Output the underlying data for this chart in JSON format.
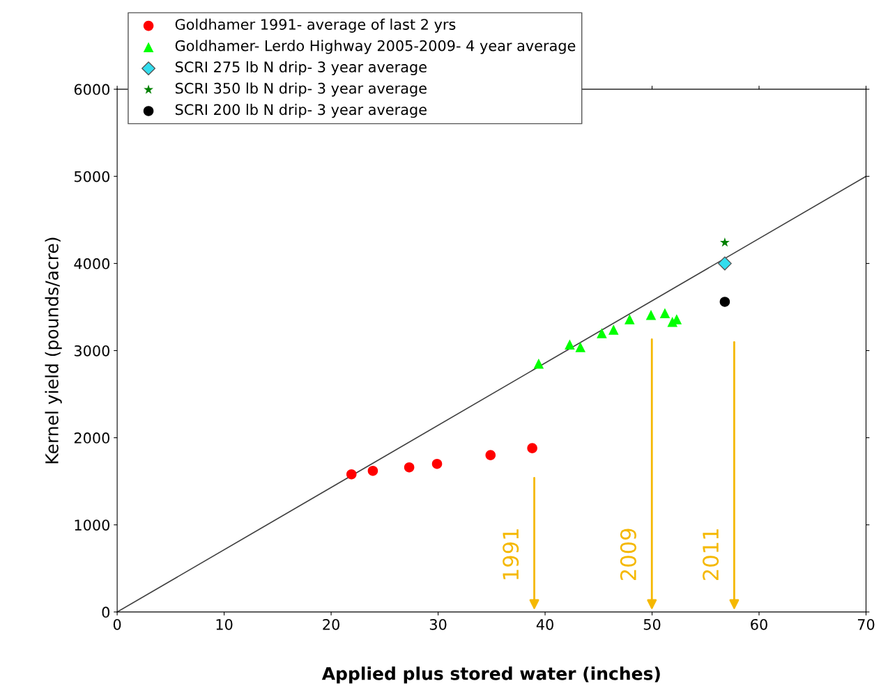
{
  "chart_data": {
    "type": "scatter",
    "xlabel": "Applied plus stored water (inches)",
    "ylabel": "Kernel yield (pounds/acre)",
    "xlim": [
      0,
      70
    ],
    "ylim": [
      0,
      6000
    ],
    "xticks": [
      0,
      10,
      20,
      30,
      40,
      50,
      60,
      70
    ],
    "yticks": [
      0,
      1000,
      2000,
      3000,
      4000,
      5000,
      6000
    ],
    "grid": false,
    "legend": "top left",
    "series": [
      {
        "name": "Goldhamer 1991- average of last 2 yrs",
        "color": "#ff0000",
        "marker": "circle",
        "x": [
          21.9,
          23.9,
          27.3,
          29.9,
          34.9,
          38.8
        ],
        "values": [
          1580,
          1620,
          1660,
          1700,
          1800,
          1880
        ]
      },
      {
        "name": "Goldhamer- Lerdo Highway 2005-2009- 4 year average",
        "color": "#00ff00",
        "marker": "triangle",
        "x": [
          39.4,
          42.3,
          43.3,
          45.3,
          46.4,
          47.9,
          49.9,
          51.2,
          51.9,
          52.3
        ],
        "values": [
          2850,
          3070,
          3040,
          3200,
          3240,
          3360,
          3410,
          3430,
          3330,
          3360
        ]
      },
      {
        "name": "SCRI 275 lb N drip- 3 year average",
        "color": "#33ddee",
        "marker": "diamond",
        "x": [
          56.8
        ],
        "values": [
          4000
        ]
      },
      {
        "name": "SCRI 350 lb N drip- 3 year average",
        "color": "#008000",
        "marker": "star",
        "x": [
          56.8
        ],
        "values": [
          4240
        ]
      },
      {
        "name": "SCRI 200 lb N drip- 3 year average",
        "color": "#000000",
        "marker": "circle",
        "x": [
          56.8
        ],
        "values": [
          3560
        ]
      },
      {
        "type": "line",
        "color": "#404040",
        "marker": "none",
        "x": [
          0,
          70
        ],
        "values": [
          0,
          5000
        ]
      }
    ],
    "annotations": [
      "1991",
      "2009",
      "2011"
    ]
  }
}
